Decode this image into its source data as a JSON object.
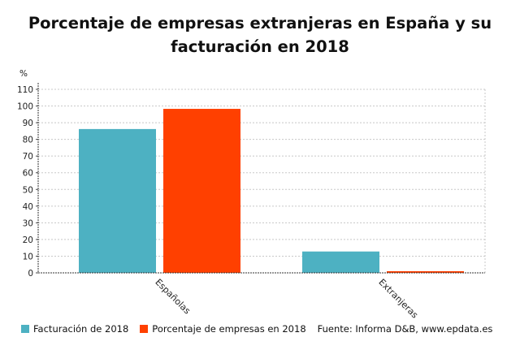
{
  "chart_data": {
    "type": "bar",
    "title": "Porcentaje de empresas extranjeras en España y su facturación en 2018",
    "ylabel": "%",
    "categories": [
      "Españolas",
      "Extranjeras"
    ],
    "series": [
      {
        "name": "Facturación de 2018",
        "values": [
          86.2,
          12.8
        ],
        "color": "#4DB1C2"
      },
      {
        "name": "Porcentaje de empresas en 2018",
        "values": [
          98.3,
          1.0
        ],
        "color": "#FF4000"
      }
    ],
    "ylim": [
      0,
      110
    ],
    "yticks": [
      0,
      10,
      20,
      30,
      40,
      50,
      60,
      70,
      80,
      90,
      100,
      110
    ],
    "grid": true,
    "legend": "bottom-left",
    "source": "Fuente: Informa D&B, www.epdata.es"
  }
}
